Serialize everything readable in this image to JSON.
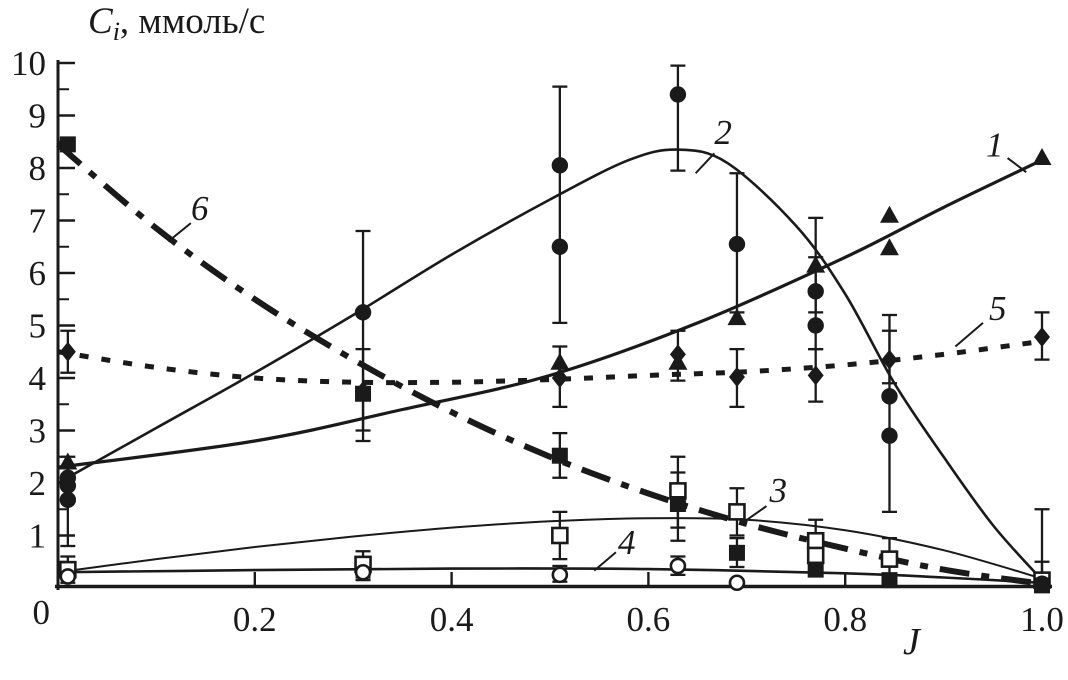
{
  "figure": {
    "background": "#ffffff",
    "ink": "#1a1a1a"
  },
  "chart_data": {
    "type": "line",
    "title": "",
    "y_axis": {
      "label_var": "C",
      "label_sub": "i",
      "label_rest": ", ммоль/с",
      "min": 0,
      "max": 10,
      "major_tick_step": 1,
      "minor_tick_step": 0.5,
      "tick_labels": [
        "1",
        "2",
        "3",
        "4",
        "5",
        "6",
        "7",
        "8",
        "9",
        "10"
      ],
      "origin_label": "0",
      "grid": "off"
    },
    "x_axis": {
      "label": "J",
      "min": 0,
      "max": 1.0,
      "ticks": [
        0.2,
        0.4,
        0.6,
        0.8,
        1.0
      ],
      "tick_labels": [
        "0.2",
        "0.4",
        "0.6",
        "0.8",
        "1.0"
      ],
      "grid": "off"
    },
    "legend": "none",
    "series": [
      {
        "id": 1,
        "label": "1",
        "marker": "filled-triangle",
        "line_style": "solid",
        "line_width": 3.2,
        "curve": [
          [
            0,
            2.3
          ],
          [
            0.2,
            2.8
          ],
          [
            0.35,
            3.4
          ],
          [
            0.5,
            4.05
          ],
          [
            0.65,
            5.05
          ],
          [
            0.8,
            6.3
          ],
          [
            0.9,
            7.25
          ],
          [
            1.0,
            8.15
          ]
        ],
        "points": [
          [
            0.01,
            2.4
          ],
          [
            0.51,
            4.3
          ],
          [
            0.63,
            4.3
          ],
          [
            0.69,
            5.15
          ],
          [
            0.77,
            6.15
          ],
          [
            0.845,
            6.48
          ],
          [
            0.845,
            7.1
          ],
          [
            1.0,
            8.2
          ]
        ],
        "error_bars": [
          [
            0.77,
            5.25,
            7.05
          ]
        ],
        "annotation": {
          "text": "1",
          "x": 0.952,
          "y": 8.45,
          "leader": [
            0.965,
            8.19,
            0.984,
            7.92
          ]
        }
      },
      {
        "id": 2,
        "label": "2",
        "marker": "filled-circle",
        "line_style": "solid",
        "line_width": 2.6,
        "curve": [
          [
            0,
            2.0
          ],
          [
            0.1,
            3.05
          ],
          [
            0.2,
            4.1
          ],
          [
            0.3,
            5.2
          ],
          [
            0.4,
            6.35
          ],
          [
            0.5,
            7.4
          ],
          [
            0.58,
            8.15
          ],
          [
            0.63,
            8.35
          ],
          [
            0.68,
            8.1
          ],
          [
            0.75,
            6.9
          ],
          [
            0.8,
            5.6
          ],
          [
            0.85,
            3.9
          ],
          [
            0.9,
            2.5
          ],
          [
            0.95,
            1.2
          ],
          [
            1.0,
            0.15
          ]
        ],
        "points": [
          [
            0.01,
            2.1
          ],
          [
            0.01,
            1.95
          ],
          [
            0.01,
            1.68
          ],
          [
            0.31,
            5.25
          ],
          [
            0.51,
            8.05
          ],
          [
            0.51,
            6.5
          ],
          [
            0.63,
            9.4
          ],
          [
            0.69,
            6.55
          ],
          [
            0.77,
            5.65
          ],
          [
            0.77,
            5.0
          ],
          [
            0.845,
            3.65
          ],
          [
            0.845,
            2.9
          ],
          [
            1.0,
            0.1
          ]
        ],
        "error_bars": [
          [
            0.01,
            0.8,
            2.5
          ],
          [
            0.31,
            2.8,
            6.8
          ],
          [
            0.51,
            5.05,
            9.55
          ],
          [
            0.63,
            7.95,
            9.95
          ],
          [
            0.69,
            5.25,
            7.9
          ],
          [
            0.77,
            4.55,
            6.3
          ],
          [
            0.845,
            1.45,
            5.2
          ],
          [
            1.0,
            0.05,
            1.5
          ]
        ],
        "annotation": {
          "text": "2",
          "x": 0.676,
          "y": 8.69,
          "leader": [
            0.667,
            8.28,
            0.648,
            7.9
          ]
        }
      },
      {
        "id": 3,
        "label": "3",
        "marker": "open-square",
        "line_style": "solid",
        "line_width": 2.0,
        "curve": [
          [
            0,
            0.3
          ],
          [
            0.1,
            0.55
          ],
          [
            0.2,
            0.78
          ],
          [
            0.3,
            0.98
          ],
          [
            0.4,
            1.15
          ],
          [
            0.5,
            1.27
          ],
          [
            0.6,
            1.33
          ],
          [
            0.7,
            1.3
          ],
          [
            0.8,
            1.1
          ],
          [
            0.9,
            0.72
          ],
          [
            1.0,
            0.18
          ]
        ],
        "points": [
          [
            0.01,
            0.35
          ],
          [
            0.31,
            0.45
          ],
          [
            0.51,
            1.0
          ],
          [
            0.63,
            1.85
          ],
          [
            0.69,
            1.45
          ],
          [
            0.77,
            0.9
          ],
          [
            0.77,
            0.62
          ],
          [
            0.845,
            0.55
          ],
          [
            1.0,
            0.15
          ]
        ],
        "error_bars": [
          [
            0.01,
            0.1,
            0.6
          ],
          [
            0.31,
            0.2,
            0.7
          ],
          [
            0.51,
            0.55,
            1.45
          ],
          [
            0.63,
            0.9,
            2.5
          ],
          [
            0.69,
            1.0,
            1.9
          ],
          [
            0.77,
            0.35,
            1.3
          ],
          [
            0.845,
            0.2,
            0.95
          ],
          [
            1.0,
            0.05,
            0.5
          ]
        ],
        "annotation": {
          "text": "3",
          "x": 0.732,
          "y": 1.87,
          "leader": [
            0.72,
            1.56,
            0.698,
            1.27
          ]
        }
      },
      {
        "id": 4,
        "label": "4",
        "marker": "open-circle",
        "line_style": "solid",
        "line_width": 2.6,
        "curve": [
          [
            0,
            0.3
          ],
          [
            0.2,
            0.34
          ],
          [
            0.4,
            0.37
          ],
          [
            0.6,
            0.36
          ],
          [
            0.8,
            0.28
          ],
          [
            0.9,
            0.2
          ],
          [
            1.0,
            0.1
          ]
        ],
        "points": [
          [
            0.01,
            0.22
          ],
          [
            0.31,
            0.3
          ],
          [
            0.51,
            0.25
          ],
          [
            0.63,
            0.42
          ],
          [
            0.69,
            0.1
          ],
          [
            1.0,
            0.08
          ]
        ],
        "error_bars": [
          [
            0.31,
            0.15,
            0.5
          ],
          [
            0.51,
            0.12,
            0.42
          ],
          [
            0.63,
            0.25,
            0.6
          ]
        ],
        "annotation": {
          "text": "4",
          "x": 0.578,
          "y": 0.88,
          "leader": [
            0.567,
            0.68,
            0.545,
            0.33
          ]
        }
      },
      {
        "id": 5,
        "label": "5",
        "marker": "filled-diamond",
        "line_style": "dotted",
        "line_width": 5,
        "curve": [
          [
            0,
            4.5
          ],
          [
            0.1,
            4.2
          ],
          [
            0.2,
            4.0
          ],
          [
            0.3,
            3.92
          ],
          [
            0.4,
            3.92
          ],
          [
            0.5,
            3.97
          ],
          [
            0.6,
            4.05
          ],
          [
            0.7,
            4.12
          ],
          [
            0.8,
            4.25
          ],
          [
            0.9,
            4.45
          ],
          [
            1.0,
            4.7
          ]
        ],
        "points": [
          [
            0.01,
            4.5
          ],
          [
            0.31,
            3.75
          ],
          [
            0.51,
            4.0
          ],
          [
            0.63,
            4.45
          ],
          [
            0.69,
            4.02
          ],
          [
            0.77,
            4.05
          ],
          [
            0.845,
            4.35
          ],
          [
            1.0,
            4.78
          ]
        ],
        "error_bars": [
          [
            0.01,
            4.1,
            4.9
          ],
          [
            0.31,
            3.0,
            4.55
          ],
          [
            0.51,
            3.45,
            4.6
          ],
          [
            0.63,
            3.95,
            4.9
          ],
          [
            0.69,
            3.45,
            4.55
          ],
          [
            0.77,
            3.55,
            4.55
          ],
          [
            0.845,
            3.9,
            4.9
          ],
          [
            1.0,
            4.35,
            5.25
          ]
        ],
        "annotation": {
          "text": "5",
          "x": 0.955,
          "y": 5.33,
          "leader": [
            0.94,
            5.05,
            0.912,
            4.6
          ]
        }
      },
      {
        "id": 6,
        "label": "6",
        "marker": "filled-square",
        "line_style": "dash-dot",
        "line_width": 6,
        "curve": [
          [
            0,
            8.45
          ],
          [
            0.1,
            6.85
          ],
          [
            0.2,
            5.5
          ],
          [
            0.3,
            4.35
          ],
          [
            0.4,
            3.35
          ],
          [
            0.5,
            2.5
          ],
          [
            0.6,
            1.8
          ],
          [
            0.7,
            1.22
          ],
          [
            0.8,
            0.75
          ],
          [
            0.9,
            0.35
          ],
          [
            1.0,
            0.08
          ]
        ],
        "points": [
          [
            0.01,
            8.45
          ],
          [
            0.31,
            3.7
          ],
          [
            0.51,
            2.52
          ],
          [
            0.63,
            1.6
          ],
          [
            0.69,
            0.67
          ],
          [
            0.77,
            0.35
          ],
          [
            0.845,
            0.15
          ],
          [
            1.0,
            0.05
          ]
        ],
        "error_bars": [
          [
            0.51,
            2.1,
            2.95
          ],
          [
            0.63,
            1.15,
            2.2
          ],
          [
            0.69,
            0.4,
            0.95
          ]
        ],
        "annotation": {
          "text": "6",
          "x": 0.144,
          "y": 7.24,
          "leader": [
            0.135,
            6.95,
            0.112,
            6.6
          ]
        }
      }
    ]
  }
}
